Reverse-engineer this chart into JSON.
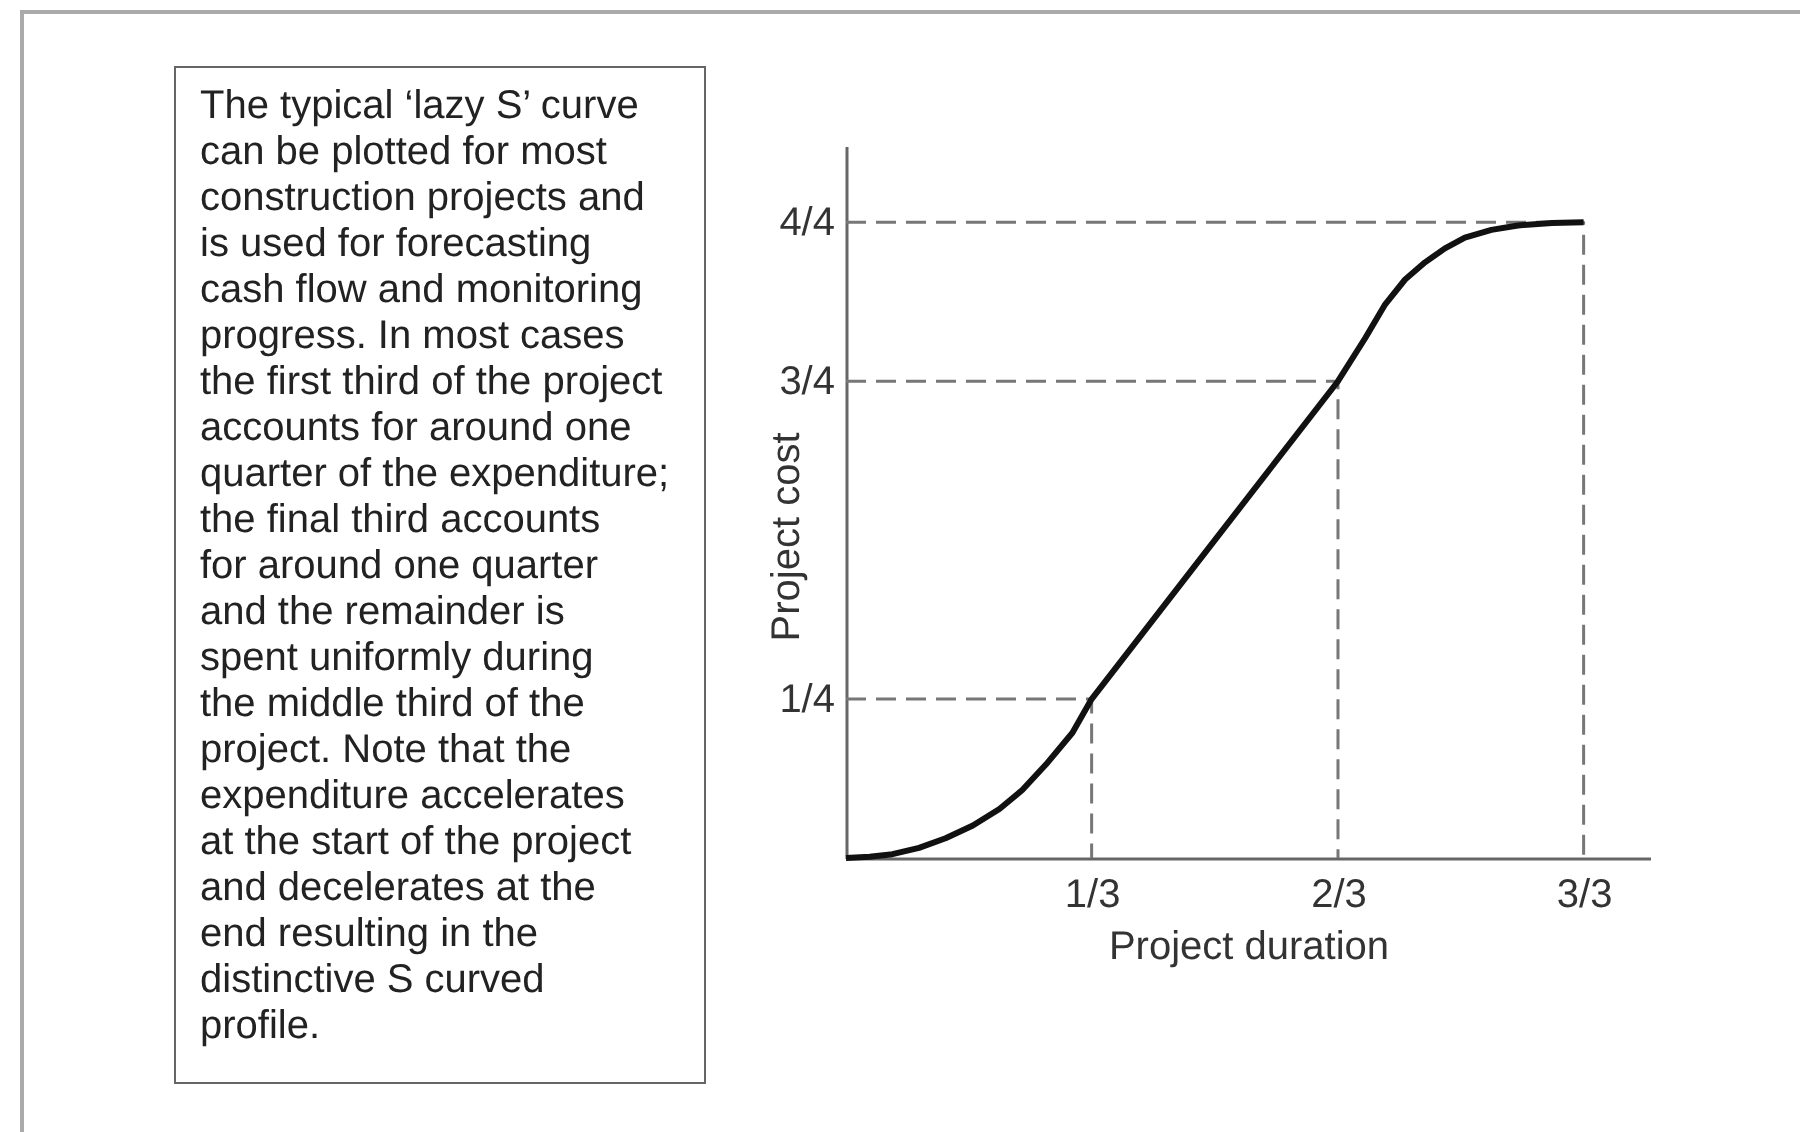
{
  "chart_data": {
    "type": "line",
    "xlabel": "Project duration",
    "ylabel": "Project cost",
    "annotations": [
      "The typical ‘lazy S’ curve\ncan be plotted for most\nconstruction projects and\nis used for forecasting\ncash flow and monitoring\nprogress. In most cases\nthe first third of the project\naccounts for around one\nquarter of the expenditure;\nthe final third accounts\nfor around one quarter\nand the remainder is\nspent uniformly during\nthe middle third of the\nproject. Note that the\nexpenditure accelerates\nat the start of the project\nand decelerates at the\nend resulting in the\ndistinctive S curved\nprofile."
    ],
    "series": [
      {
        "color": "#777777",
        "line_style": "dashed",
        "x": [
          0,
          0.333,
          0.333
        ],
        "values": [
          0.25,
          0.25,
          0
        ]
      },
      {
        "color": "#777777",
        "line_style": "dashed",
        "x": [
          0,
          0.667,
          0.667
        ],
        "values": [
          0.75,
          0.75,
          0
        ]
      },
      {
        "color": "#777777",
        "line_style": "dashed",
        "x": [
          0,
          1,
          1
        ],
        "values": [
          1,
          1,
          0
        ]
      },
      {
        "color": "#111111",
        "x": [
          0,
          0.032,
          0.063,
          0.099,
          0.135,
          0.172,
          0.208,
          0.239,
          0.271,
          0.307,
          0.333,
          0.5,
          0.667,
          0.704,
          0.731,
          0.758,
          0.785,
          0.812,
          0.839,
          0.875,
          0.911,
          0.957,
          1
        ],
        "values": [
          0,
          0.002,
          0.006,
          0.016,
          0.031,
          0.051,
          0.077,
          0.107,
          0.147,
          0.197,
          0.25,
          0.5,
          0.75,
          0.818,
          0.871,
          0.91,
          0.937,
          0.959,
          0.976,
          0.988,
          0.995,
          0.999,
          1
        ]
      }
    ],
    "xlim": [
      0,
      1.09
    ],
    "ylim": [
      0,
      1.12
    ],
    "xticks": [
      {
        "value": 0.333,
        "label": "1/3"
      },
      {
        "value": 0.667,
        "label": "2/3"
      },
      {
        "value": 1,
        "label": "3/3"
      }
    ],
    "yticks": [
      {
        "value": 0.25,
        "label": "1/4"
      },
      {
        "value": 0.75,
        "label": "3/4"
      },
      {
        "value": 1,
        "label": "4/4"
      }
    ],
    "line_style": "solid"
  }
}
